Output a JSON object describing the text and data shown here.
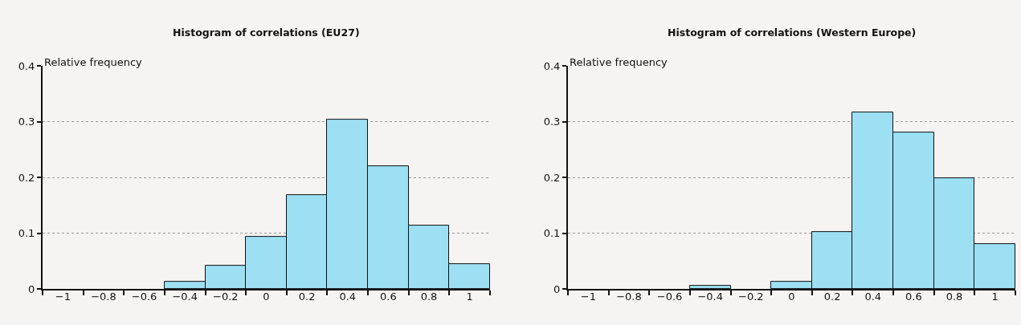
{
  "chart_data": [
    {
      "type": "bar",
      "title": "Histogram of correlations (EU27)",
      "ylabel": "Relative frequency",
      "color": "#9de0f3",
      "x": [
        -1,
        -0.8,
        -0.6,
        -0.4,
        -0.2,
        0,
        0.2,
        0.4,
        0.6,
        0.8,
        1
      ],
      "values": [
        0,
        0,
        0,
        0.014,
        0.042,
        0.094,
        0.168,
        0.303,
        0.22,
        0.114,
        0.045
      ],
      "xlim": [
        -1.1,
        1.1
      ],
      "ylim": [
        0,
        0.4
      ],
      "yticks": [
        0,
        0.1,
        0.2,
        0.3,
        0.4
      ],
      "xticks": [
        {
          "value": -1.1,
          "label": null
        },
        {
          "value": -1,
          "label": "−1"
        },
        {
          "value": -0.9,
          "label": null
        },
        {
          "value": -0.8,
          "label": "−0.8"
        },
        {
          "value": -0.7,
          "label": null
        },
        {
          "value": -0.6,
          "label": "−0.6"
        },
        {
          "value": -0.5,
          "label": null
        },
        {
          "value": -0.4,
          "label": "−0.4"
        },
        {
          "value": -0.3,
          "label": null
        },
        {
          "value": -0.2,
          "label": "−0.2"
        },
        {
          "value": -0.1,
          "label": null
        },
        0,
        {
          "value": 0.1,
          "label": null
        },
        0.2,
        {
          "value": 0.3,
          "label": null
        },
        0.4,
        {
          "value": 0.5,
          "label": null
        },
        0.6,
        {
          "value": 0.7,
          "label": null
        },
        0.8,
        {
          "value": 0.9,
          "label": null
        },
        1,
        {
          "value": 1.1,
          "label": null
        }
      ],
      "grid": "y"
    },
    {
      "type": "bar",
      "title": "Histogram of correlations (Western Europe)",
      "ylabel": "Relative frequency",
      "color": "#9de0f3",
      "x": [
        -1,
        -0.8,
        -0.6,
        -0.4,
        -0.2,
        0,
        0.2,
        0.4,
        0.6,
        0.8,
        1
      ],
      "values": [
        0,
        0,
        0,
        0.006,
        0,
        0.014,
        0.102,
        0.317,
        0.281,
        0.199,
        0.081
      ],
      "xlim": [
        -1.1,
        1.1
      ],
      "ylim": [
        0,
        0.4
      ],
      "yticks": [
        0,
        0.1,
        0.2,
        0.3,
        0.4
      ],
      "xticks": [
        {
          "value": -1.1,
          "label": null
        },
        {
          "value": -1,
          "label": "−1"
        },
        {
          "value": -0.9,
          "label": null
        },
        {
          "value": -0.8,
          "label": "−0.8"
        },
        {
          "value": -0.7,
          "label": null
        },
        {
          "value": -0.6,
          "label": "−0.6"
        },
        {
          "value": -0.5,
          "label": null
        },
        {
          "value": -0.4,
          "label": "−0.4"
        },
        {
          "value": -0.3,
          "label": null
        },
        {
          "value": -0.2,
          "label": "−0.2"
        },
        {
          "value": -0.1,
          "label": null
        },
        0,
        {
          "value": 0.1,
          "label": null
        },
        0.2,
        {
          "value": 0.3,
          "label": null
        },
        0.4,
        {
          "value": 0.5,
          "label": null
        },
        0.6,
        {
          "value": 0.7,
          "label": null
        },
        0.8,
        {
          "value": 0.9,
          "label": null
        },
        1,
        {
          "value": 1.1,
          "label": null
        }
      ],
      "grid": "y"
    }
  ]
}
